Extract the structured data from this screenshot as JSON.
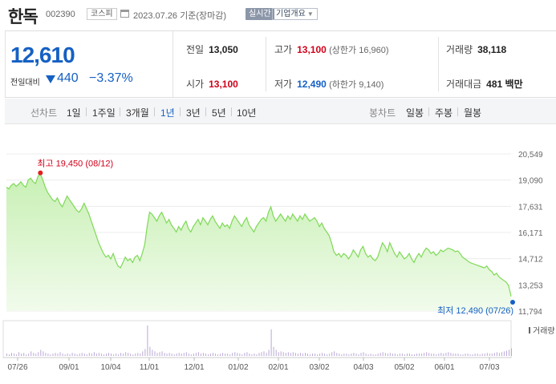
{
  "header": {
    "name": "한독",
    "code": "002390",
    "market": "코스피",
    "date_basis": "2023.07.26  기준(장마감)",
    "realtime_label": "실시간",
    "company_label": "기업개요"
  },
  "price": {
    "current": "12,610",
    "change_label": "전일대비",
    "change_amount": "440",
    "change_rate": "−3.37%"
  },
  "stats": {
    "prev_label": "전일",
    "prev_value": "13,050",
    "high_label": "고가",
    "high_value": "13,100",
    "high_sub": "(상한가 16,960)",
    "volume_label": "거래량",
    "volume_value": "38,118",
    "open_label": "시가",
    "open_value": "13,100",
    "low_label": "저가",
    "low_value": "12,490",
    "low_sub": "(하한가 9,140)",
    "amount_label": "거래대금",
    "amount_value": "481",
    "amount_unit": "백만"
  },
  "toolbar": {
    "line_label": "선차트",
    "periods": [
      "1일",
      "1주일",
      "3개월",
      "1년",
      "3년",
      "5년",
      "10년"
    ],
    "active_period": "1년",
    "candle_label": "봉차트",
    "candles": [
      "일봉",
      "주봉",
      "월봉"
    ]
  },
  "colors": {
    "up": "#d0021b",
    "down": "#1560c4",
    "line": "#7ed957",
    "fill_top": "#c8f0b4",
    "fill_bottom": "#f1fbec"
  },
  "chart_data": {
    "type": "area",
    "y_ticks": [
      "20,549",
      "19,090",
      "17,631",
      "16,171",
      "14,712",
      "13,253",
      "11,794"
    ],
    "ylim": [
      11794,
      20549
    ],
    "x_ticks": [
      "07/26",
      "09/01",
      "10/04",
      "11/01",
      "12/01",
      "01/02",
      "02/01",
      "03/02",
      "04/03",
      "05/02",
      "06/01",
      "07/03"
    ],
    "high_annotation": "최고 19,450 (08/12)",
    "low_annotation": "최저 12,490 (07/26)",
    "volume_label": "거래량",
    "prices": [
      18700,
      18600,
      18800,
      18900,
      18750,
      18850,
      19000,
      18800,
      18700,
      19100,
      19200,
      19000,
      18900,
      19300,
      19450,
      19100,
      18700,
      18400,
      18200,
      18000,
      17900,
      18100,
      17800,
      17600,
      17900,
      18200,
      18000,
      17800,
      17600,
      17400,
      17300,
      17500,
      17800,
      17500,
      17200,
      16800,
      16400,
      16000,
      15600,
      15300,
      15000,
      14800,
      14900,
      14700,
      15000,
      14600,
      14300,
      14200,
      14500,
      14800,
      14600,
      14700,
      14500,
      14800,
      14900,
      14600,
      15000,
      15500,
      16500,
      17300,
      17200,
      17000,
      16800,
      17100,
      17300,
      17000,
      16700,
      16900,
      16600,
      16400,
      16200,
      16500,
      16300,
      16600,
      16800,
      16400,
      16200,
      16500,
      16700,
      16900,
      16600,
      17000,
      16800,
      16600,
      16900,
      17100,
      16800,
      16600,
      16400,
      16700,
      16500,
      16600,
      16400,
      16800,
      17100,
      16900,
      16700,
      16500,
      16800,
      17000,
      16600,
      16400,
      16200,
      16500,
      16700,
      16900,
      17000,
      16800,
      17300,
      17600,
      17100,
      16800,
      17000,
      17200,
      17000,
      16800,
      17100,
      16900,
      17200,
      17000,
      16800,
      17100,
      16900,
      17200,
      17000,
      16800,
      16900,
      17000,
      16800,
      16500,
      16700,
      16400,
      16200,
      16000,
      15600,
      15100,
      14900,
      15000,
      14800,
      15000,
      14900,
      14700,
      14900,
      15200,
      15000,
      14800,
      15200,
      15400,
      15000,
      14800,
      14900,
      14700,
      14600,
      14800,
      15200,
      15600,
      15400,
      15100,
      15600,
      15300,
      15000,
      14800,
      15100,
      14900,
      14700,
      14800,
      15000,
      14700,
      14500,
      14800,
      15000,
      14800,
      15100,
      15300,
      15200,
      15000,
      15100,
      14900,
      15000,
      15200,
      15100,
      15200,
      15300,
      15250,
      15200,
      15100,
      15150,
      15000,
      14800,
      14700,
      14600,
      14500,
      14450,
      14400,
      14350,
      14300,
      14250,
      14200,
      14300,
      14100,
      14000,
      13800,
      13900,
      13700,
      13600,
      13500,
      13400,
      13200,
      12610
    ],
    "volumes": [
      3,
      2,
      4,
      3,
      2,
      5,
      3,
      4,
      2,
      3,
      6,
      4,
      3,
      5,
      8,
      6,
      4,
      3,
      2,
      3,
      4,
      3,
      5,
      3,
      2,
      3,
      2,
      4,
      3,
      2,
      3,
      4,
      3,
      2,
      4,
      3,
      5,
      3,
      4,
      3,
      2,
      3,
      4,
      3,
      2,
      3,
      2,
      4,
      3,
      5,
      4,
      3,
      2,
      3,
      4,
      3,
      6,
      9,
      40,
      12,
      8,
      6,
      4,
      5,
      6,
      4,
      3,
      4,
      3,
      2,
      3,
      4,
      3,
      4,
      5,
      3,
      2,
      3,
      4,
      5,
      3,
      4,
      3,
      2,
      3,
      4,
      3,
      2,
      3,
      4,
      3,
      3,
      2,
      4,
      5,
      4,
      3,
      2,
      4,
      5,
      3,
      2,
      3,
      2,
      4,
      5,
      6,
      4,
      8,
      35,
      12,
      8,
      5,
      6,
      5,
      4,
      5,
      4,
      5,
      4,
      3,
      4,
      3,
      4,
      3,
      2,
      3,
      3,
      2,
      3,
      4,
      3,
      2,
      3,
      5,
      6,
      4,
      3,
      2,
      3,
      3,
      2,
      3,
      4,
      3,
      2,
      4,
      5,
      3,
      2,
      3,
      2,
      2,
      3,
      4,
      5,
      4,
      3,
      4,
      3,
      3,
      2,
      3,
      3,
      2,
      3,
      3,
      2,
      2,
      3,
      3,
      3,
      4,
      5,
      4,
      3,
      3,
      2,
      3,
      4,
      3,
      4,
      5,
      4,
      3,
      3,
      3,
      2,
      2,
      3,
      3,
      2,
      2,
      3,
      3,
      2,
      3,
      3,
      4,
      3,
      3,
      4,
      5,
      4,
      5,
      6,
      7,
      8,
      10
    ]
  }
}
